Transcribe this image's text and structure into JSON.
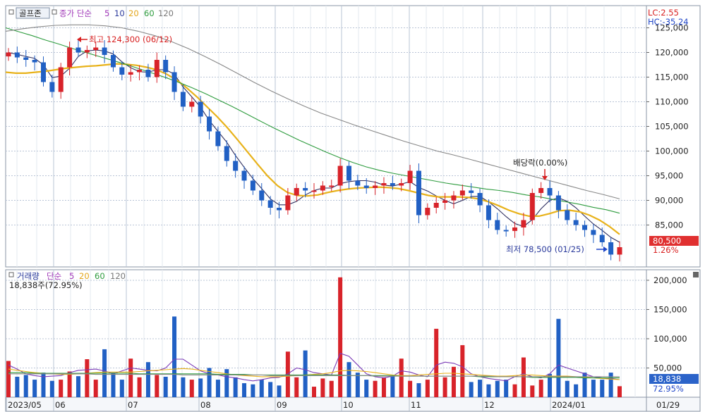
{
  "colors": {
    "up": "#d8232a",
    "down": "#2160c4",
    "ma5": "#2e2e5e",
    "ma10": "#7b3bb7",
    "ma20": "#e8b21a",
    "ma60": "#2e9c3e",
    "ma120": "#888888",
    "grid": "#b9c4d6",
    "border": "#8a95a5",
    "axis_bg": "#f5f7fa",
    "last_price_bg": "#e03030",
    "last_volume_bg": "#2b63c9"
  },
  "price_panel": {
    "tag": "골프존",
    "legend_prefix": "종가 단순",
    "legend_ma": [
      "5",
      "10",
      "20",
      "60",
      "120"
    ],
    "lc_label": "LC:2.55",
    "hc_label": "HC:-35.24",
    "high_note": "최고 124,300 (06/12)",
    "low_note": "최저 78,500 (01/25)",
    "dividend_note": "배당락(0.00%)",
    "last_price": "80,500",
    "last_change": "1.26%"
  },
  "volume_panel": {
    "legend_title": "거래량",
    "legend_prefix": "단순",
    "legend_ma": [
      "5",
      "20",
      "60",
      "120"
    ],
    "info": "18,838주(72.95%)",
    "last_volume": "18,838",
    "last_ratio": "72.95%"
  },
  "x_axis": {
    "labels": [
      "2023/05",
      "06",
      "07",
      "08",
      "09",
      "10",
      "11",
      "12",
      "2024/01"
    ],
    "current": "01/29"
  },
  "chart_data": [
    {
      "type": "candlestick",
      "title": "골프존",
      "y_ticks": [
        85000,
        90000,
        95000,
        100000,
        105000,
        110000,
        115000,
        120000,
        125000
      ],
      "y_tick_labels": [
        "85,000",
        "90,000",
        "95,000",
        "100,000",
        "105,000",
        "110,000",
        "115,000",
        "120,000",
        "125,000"
      ],
      "ylim": [
        76500,
        129500
      ],
      "grid": true,
      "series": [
        {
          "name": "종가",
          "values": [
            120000,
            119000,
            118500,
            118000,
            114000,
            112000,
            117000,
            121000,
            120000,
            120500,
            121000,
            119500,
            117000,
            115500,
            116000,
            116500,
            115000,
            118500,
            116000,
            112000,
            109000,
            110000,
            107000,
            104000,
            101000,
            98000,
            96000,
            94000,
            92000,
            90000,
            88500,
            88000,
            91000,
            92500,
            92000,
            92000,
            93000,
            93000,
            97000,
            94000,
            93000,
            92500,
            93000,
            93500,
            93000,
            93500,
            96000,
            87000,
            88500,
            89500,
            90000,
            91000,
            92000,
            91500,
            89000,
            86000,
            84000,
            83800,
            84500,
            86000,
            91500,
            92500,
            91000,
            88000,
            86000,
            85000,
            84000,
            83000,
            81500,
            79000,
            80500
          ]
        },
        {
          "name": "5",
          "values": [
            120000,
            119600,
            119200,
            118800,
            117500,
            114900,
            115200,
            116800,
            119200,
            120300,
            120500,
            120300,
            119700,
            118100,
            116900,
            116100,
            116000,
            116500,
            116500,
            115600,
            113000,
            111000,
            108900,
            106200,
            104000,
            101800,
            99100,
            96700,
            94400,
            92400,
            90300,
            89100,
            89100,
            89800,
            91100,
            92000,
            92500,
            92500,
            93400,
            93800,
            94000,
            94000,
            93700,
            93100,
            92900,
            93300,
            93800,
            92600,
            91900,
            90900,
            90000,
            89300,
            90000,
            90800,
            90800,
            89700,
            88300,
            86700,
            85300,
            84700,
            86100,
            88300,
            90000,
            90500,
            89800,
            88500,
            86800,
            85200,
            83900,
            82500,
            81500
          ]
        },
        {
          "name": "20",
          "values": [
            116000,
            115800,
            115800,
            116000,
            116200,
            116500,
            116800,
            117000,
            117200,
            117300,
            117500,
            117700,
            117600,
            117400,
            117000,
            116500,
            115600,
            114400,
            112800,
            111000,
            109000,
            107000,
            104800,
            102400,
            99900,
            97400,
            95000,
            93000,
            91600,
            91000,
            90900,
            91100,
            91600,
            92000,
            92300,
            92500,
            92600,
            92700,
            92600,
            92400,
            92000,
            91500,
            91000,
            90700,
            90700,
            90700,
            90600,
            90300,
            89700,
            88900,
            88000,
            87300,
            86800,
            86800,
            87300,
            87900,
            88000,
            87700,
            87000,
            86000,
            84700,
            83100
          ]
        },
        {
          "name": "60",
          "values": [
            125000,
            124200,
            123400,
            122500,
            121700,
            120800,
            120000,
            119200,
            118400,
            117600,
            116700,
            115800,
            114900,
            113900,
            112800,
            111600,
            110300,
            109000,
            107600,
            106200,
            104800,
            103500,
            102200,
            101000,
            99800,
            98700,
            97700,
            96800,
            96100,
            95500,
            95000,
            94500,
            94000,
            93500,
            93100,
            92700,
            92300,
            92000,
            91600,
            91100,
            90700,
            90200,
            89700,
            89200,
            88600,
            88100,
            87400
          ]
        },
        {
          "name": "120",
          "values": [
            124300,
            124800,
            125200,
            125500,
            125600,
            125600,
            125400,
            125000,
            124300,
            123400,
            122200,
            120800,
            119200,
            117500,
            115700,
            113900,
            112200,
            110600,
            109100,
            107700,
            106500,
            105300,
            104200,
            103100,
            102000,
            101000,
            100000,
            99200,
            98300,
            97400,
            96500,
            95600,
            94700,
            93800,
            92900,
            92000,
            91200,
            90300
          ]
        }
      ]
    },
    {
      "type": "bar",
      "title": "거래량",
      "y_ticks": [
        50000,
        100000,
        150000,
        200000
      ],
      "y_tick_labels": [
        "50,000",
        "100,000",
        "150,000",
        "200,000"
      ],
      "ylim": [
        0,
        218000
      ],
      "grid": true,
      "series": [
        {
          "name": "거래량",
          "values": [
            62000,
            35000,
            38000,
            30000,
            42000,
            28000,
            30000,
            44000,
            36000,
            65000,
            30000,
            82000,
            42000,
            30000,
            66000,
            34000,
            60000,
            38000,
            35000,
            138000,
            34000,
            30000,
            32000,
            50000,
            30000,
            48000,
            34000,
            24000,
            22000,
            30000,
            26000,
            20000,
            78000,
            34000,
            80000,
            18000,
            32000,
            28000,
            205000,
            60000,
            42000,
            30000,
            28000,
            34000,
            36000,
            66000,
            28000,
            24000,
            30000,
            117000,
            34000,
            52000,
            89000,
            26000,
            30000,
            22000,
            28000,
            30000,
            22000,
            68000,
            20000,
            30000,
            40000,
            134000,
            28000,
            22000,
            42000,
            30000,
            30000,
            42000,
            18838
          ]
        },
        {
          "name": "5",
          "values": [
            55000,
            48000,
            40000,
            37000,
            35000,
            36000,
            37000,
            42000,
            46000,
            47000,
            48000,
            45000,
            40000,
            45000,
            50000,
            48000,
            46000,
            45000,
            50000,
            65000,
            65000,
            55000,
            45000,
            40000,
            38000,
            35000,
            33000,
            30000,
            28000,
            30000,
            33000,
            34000,
            40000,
            50000,
            47000,
            42000,
            40000,
            38000,
            75000,
            70000,
            55000,
            40000,
            35000,
            33000,
            36000,
            45000,
            43000,
            38000,
            35000,
            55000,
            60000,
            58000,
            52000,
            40000,
            35000,
            32000,
            30000,
            28000,
            35000,
            40000,
            35000,
            33000,
            40000,
            55000,
            50000,
            45000,
            40000,
            35000,
            33000,
            32000,
            30000
          ]
        },
        {
          "name": "20",
          "values": [
            48000,
            46000,
            44000,
            42000,
            41000,
            40000,
            39000,
            39000,
            40000,
            41000,
            42000,
            43000,
            43000,
            43000,
            43000,
            44000,
            45000,
            46000,
            47000,
            48000,
            49000,
            48000,
            46000,
            44000,
            42000,
            40000,
            38000,
            37000,
            36000,
            35000,
            35000,
            35000,
            36000,
            37000,
            38000,
            39000,
            40000,
            42000,
            45000,
            46000,
            45000,
            44000,
            42000,
            40000,
            38000,
            37000,
            37000,
            38000,
            39000,
            40000,
            41000,
            41000,
            40000,
            39000,
            38000,
            37000,
            36000,
            36000,
            37000,
            38000,
            38000,
            37000,
            36000,
            36000,
            36000,
            35000,
            34000,
            33000,
            32000,
            31000,
            30000
          ]
        },
        {
          "name": "60",
          "values": [
            42000,
            42000,
            42000,
            41000,
            41000,
            41000,
            41000,
            41000,
            41000,
            41000,
            41000,
            41000,
            41000,
            41000,
            41000,
            40000,
            40000,
            40000,
            40000,
            40000,
            40000,
            40000,
            40000,
            40000,
            39000,
            39000,
            39000,
            39000,
            38000,
            38000,
            38000,
            38000,
            38000,
            38000,
            38000,
            38000,
            38000,
            38000,
            38000,
            37000,
            37000,
            37000,
            37000,
            37000,
            37000,
            36000,
            36000,
            36000,
            36000,
            36000,
            36000,
            36000,
            36000,
            36000,
            35000,
            35000,
            35000,
            35000,
            35000,
            35000,
            34000,
            34000,
            34000,
            34000,
            34000,
            34000,
            33000,
            33000,
            33000,
            33000,
            33000
          ]
        },
        {
          "name": "120",
          "values": [
            40000,
            40000,
            40000,
            40000,
            40000,
            40000,
            40000,
            40000,
            40000,
            40000,
            39000,
            39000,
            39000,
            39000,
            39000,
            39000,
            39000,
            39000,
            39000,
            39000,
            38000,
            38000,
            38000,
            38000,
            38000,
            38000,
            38000,
            38000,
            38000,
            38000,
            37000,
            37000,
            37000,
            37000,
            37000,
            37000,
            37000,
            37000,
            37000,
            37000,
            37000,
            37000,
            36000,
            36000,
            36000,
            36000,
            36000,
            36000,
            36000,
            36000,
            36000,
            36000,
            36000,
            36000,
            36000,
            36000,
            35000,
            35000,
            35000,
            35000,
            35000,
            35000,
            35000,
            35000,
            35000,
            35000,
            35000,
            35000,
            35000,
            35000,
            35000
          ]
        }
      ]
    }
  ]
}
